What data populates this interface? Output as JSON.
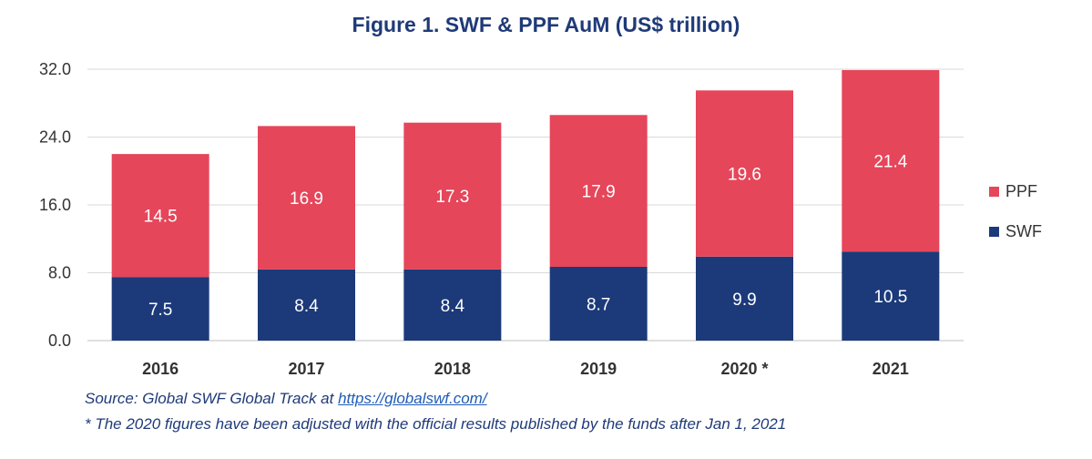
{
  "chart_data": {
    "type": "bar",
    "stacked": true,
    "title": "Figure 1. SWF & PPF AuM (US$ trillion)",
    "categories": [
      "2016",
      "2017",
      "2018",
      "2019",
      "2020 *",
      "2021"
    ],
    "series": [
      {
        "name": "SWF",
        "values": [
          7.5,
          8.4,
          8.4,
          8.7,
          9.9,
          10.5
        ],
        "color": "#1c3a7a"
      },
      {
        "name": "PPF",
        "values": [
          14.5,
          16.9,
          17.3,
          17.9,
          19.6,
          21.4
        ],
        "color": "#e5465a"
      }
    ],
    "yticks": [
      "0.0",
      "8.0",
      "16.0",
      "24.0",
      "32.0"
    ],
    "ylim": [
      0,
      32
    ],
    "grid": true,
    "legend": {
      "position": "right",
      "order": [
        "PPF",
        "SWF"
      ]
    },
    "xlabel": "",
    "ylabel": ""
  },
  "footnotes": {
    "source_prefix": "Source: Global SWF Global Track at ",
    "source_link": "https://globalswf.com/",
    "adjustment_note": "* The 2020 figures have been adjusted with the official results published by the funds after Jan 1, 2021"
  }
}
